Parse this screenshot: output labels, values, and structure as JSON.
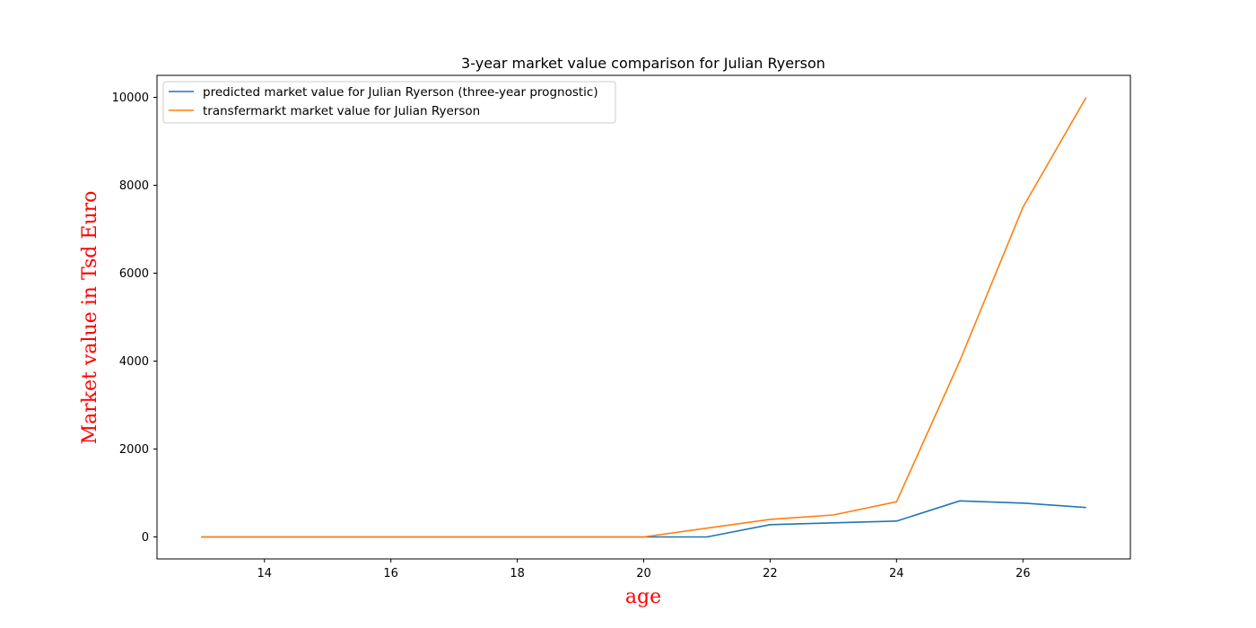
{
  "chart_data": {
    "type": "line",
    "title": "3-year market value comparison for Julian Ryerson",
    "xlabel": "age",
    "ylabel": "Market value in Tsd Euro",
    "label_color": "#ff0000",
    "xlim": [
      12.3,
      27.7
    ],
    "ylim": [
      -500,
      10500
    ],
    "xticks": [
      14,
      16,
      18,
      20,
      22,
      24,
      26
    ],
    "yticks": [
      0,
      2000,
      4000,
      6000,
      8000,
      10000
    ],
    "grid": false,
    "legend_position": "upper-left",
    "x": [
      13,
      14,
      15,
      16,
      17,
      18,
      19,
      20,
      21,
      22,
      23,
      24,
      25,
      26,
      27
    ],
    "series": [
      {
        "name": "predicted market value for Julian Ryerson (three-year prognostic)",
        "color": "#1f77b4",
        "values": [
          0,
          0,
          0,
          0,
          0,
          0,
          0,
          0,
          0,
          280,
          320,
          360,
          820,
          770,
          670
        ]
      },
      {
        "name": "transfermarkt market value for Julian Ryerson",
        "color": "#ff7f0e",
        "values": [
          0,
          0,
          0,
          0,
          0,
          0,
          0,
          0,
          200,
          400,
          500,
          800,
          4000,
          7500,
          10000
        ]
      }
    ]
  }
}
